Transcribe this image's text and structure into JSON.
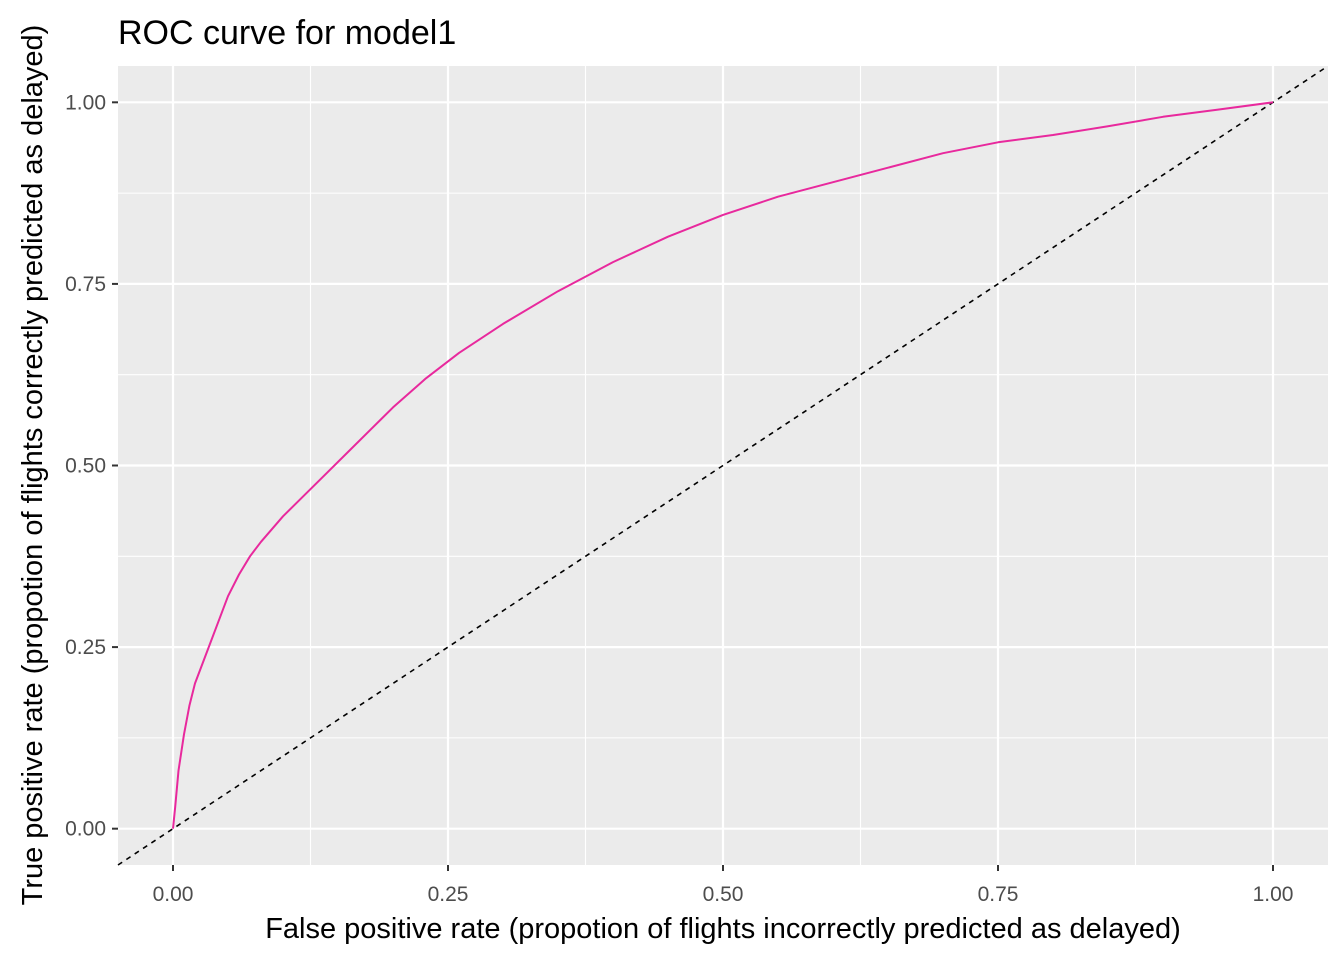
{
  "chart_data": {
    "type": "line",
    "title": "ROC curve for model1",
    "xlabel": "False positive rate (propotion of flights incorrectly predicted as delayed)",
    "ylabel": "True positive rate (propotion of flights correctly predicted as delayed)",
    "xlim": [
      -0.05,
      1.05
    ],
    "ylim": [
      -0.05,
      1.05
    ],
    "x_ticks": [
      0,
      0.25,
      0.5,
      0.75,
      1
    ],
    "x_tick_labels": [
      "0.00",
      "0.25",
      "0.50",
      "0.75",
      "1.00"
    ],
    "y_ticks": [
      0,
      0.25,
      0.5,
      0.75,
      1
    ],
    "y_tick_labels": [
      "0.00",
      "0.25",
      "0.50",
      "0.75",
      "1.00"
    ],
    "grid": true,
    "legend": "none",
    "colors": {
      "panel": "#ebebeb",
      "grid": "#ffffff",
      "curve": "#e8299d",
      "reference": "#000000"
    },
    "series": [
      {
        "x": [
          0,
          0.002,
          0.005,
          0.01,
          0.015,
          0.02,
          0.03,
          0.04,
          0.05,
          0.06,
          0.07,
          0.08,
          0.1,
          0.12,
          0.14,
          0.16,
          0.18,
          0.2,
          0.23,
          0.26,
          0.3,
          0.35,
          0.4,
          0.45,
          0.5,
          0.55,
          0.6,
          0.65,
          0.7,
          0.75,
          0.8,
          0.85,
          0.9,
          0.95,
          1.0
        ],
        "y": [
          0,
          0.03,
          0.08,
          0.13,
          0.17,
          0.2,
          0.24,
          0.28,
          0.32,
          0.35,
          0.375,
          0.395,
          0.43,
          0.46,
          0.49,
          0.52,
          0.55,
          0.58,
          0.62,
          0.655,
          0.695,
          0.74,
          0.78,
          0.815,
          0.845,
          0.87,
          0.89,
          0.91,
          0.93,
          0.945,
          0.955,
          0.967,
          0.98,
          0.99,
          1.0
        ]
      },
      {
        "x": [
          -0.05,
          1.05
        ],
        "y": [
          -0.05,
          1.05
        ]
      }
    ]
  }
}
